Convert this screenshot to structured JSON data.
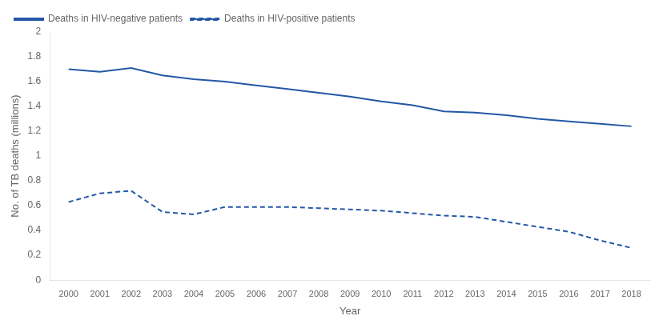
{
  "chart_data": {
    "type": "line",
    "xlabel": "Year",
    "ylabel": "No. of TB deaths (millions)",
    "x": [
      2000,
      2001,
      2002,
      2003,
      2004,
      2005,
      2006,
      2007,
      2008,
      2009,
      2010,
      2011,
      2012,
      2013,
      2014,
      2015,
      2016,
      2017,
      2018
    ],
    "series": [
      {
        "name": "Deaths in HIV-negative patients",
        "color": "#2458a6",
        "line_style": "solid",
        "values": [
          1.7,
          1.68,
          1.71,
          1.65,
          1.62,
          1.6,
          1.57,
          1.54,
          1.51,
          1.48,
          1.44,
          1.41,
          1.36,
          1.35,
          1.33,
          1.3,
          1.28,
          1.26,
          1.24
        ]
      },
      {
        "name": "Deaths in HIV-positive patients",
        "color": "#2458a6",
        "line_style": "dashed",
        "values": [
          0.63,
          0.7,
          0.72,
          0.55,
          0.53,
          0.59,
          0.59,
          0.59,
          0.58,
          0.57,
          0.56,
          0.54,
          0.52,
          0.51,
          0.47,
          0.43,
          0.39,
          0.32,
          0.26
        ]
      }
    ],
    "xlim": [
      1999.4,
      2018.6
    ],
    "xticks": [
      2000,
      2001,
      2002,
      2003,
      2004,
      2005,
      2006,
      2007,
      2008,
      2009,
      2010,
      2011,
      2012,
      2013,
      2014,
      2015,
      2016,
      2017,
      2018
    ],
    "ylim": [
      0,
      2.0
    ],
    "yticks": [
      0,
      0.2,
      0.4,
      0.6,
      0.8,
      1,
      1.2,
      1.4,
      1.6,
      1.8,
      2
    ],
    "grid": false,
    "legend": "upper left"
  }
}
